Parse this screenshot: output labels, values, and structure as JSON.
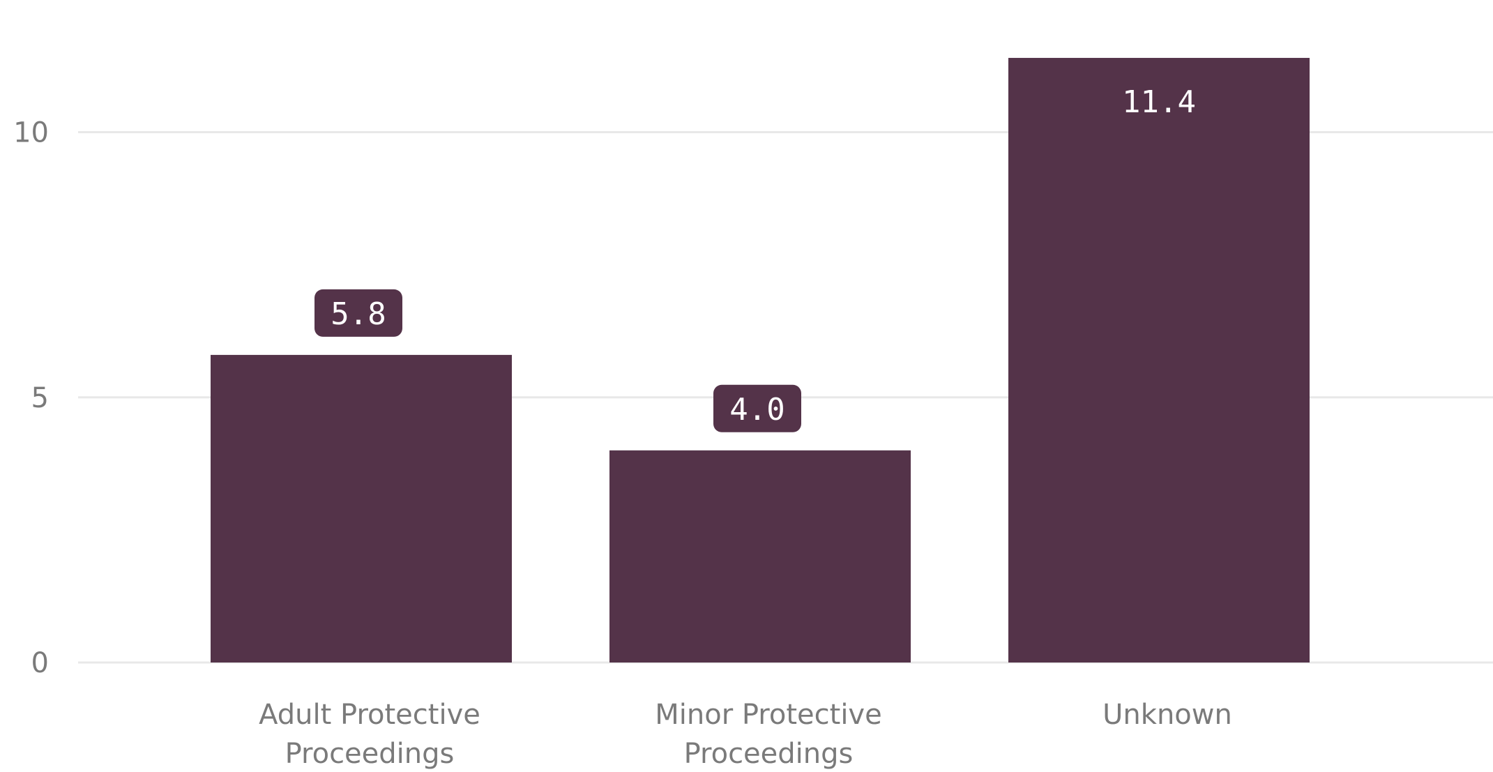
{
  "chart_data": {
    "type": "bar",
    "title": "",
    "xlabel": "",
    "ylabel": "",
    "categories": [
      [
        "Adult Protective",
        "Proceedings"
      ],
      [
        "Minor Protective",
        "Proceedings"
      ],
      [
        "Unknown"
      ]
    ],
    "values": [
      5.8,
      4.0,
      11.4
    ],
    "data_labels": [
      "5.8",
      "4.0",
      "11.4"
    ],
    "y_ticks": [
      0,
      5,
      10
    ],
    "y_tick_labels": [
      "0",
      "5",
      "10"
    ],
    "ylim": [
      0,
      12.8
    ],
    "grid": true,
    "legend": "none",
    "bar_color": "#543349",
    "grid_color": "#e8e8e8",
    "text_color": "#7a7a7a",
    "label_text_color": "#ffffff"
  }
}
